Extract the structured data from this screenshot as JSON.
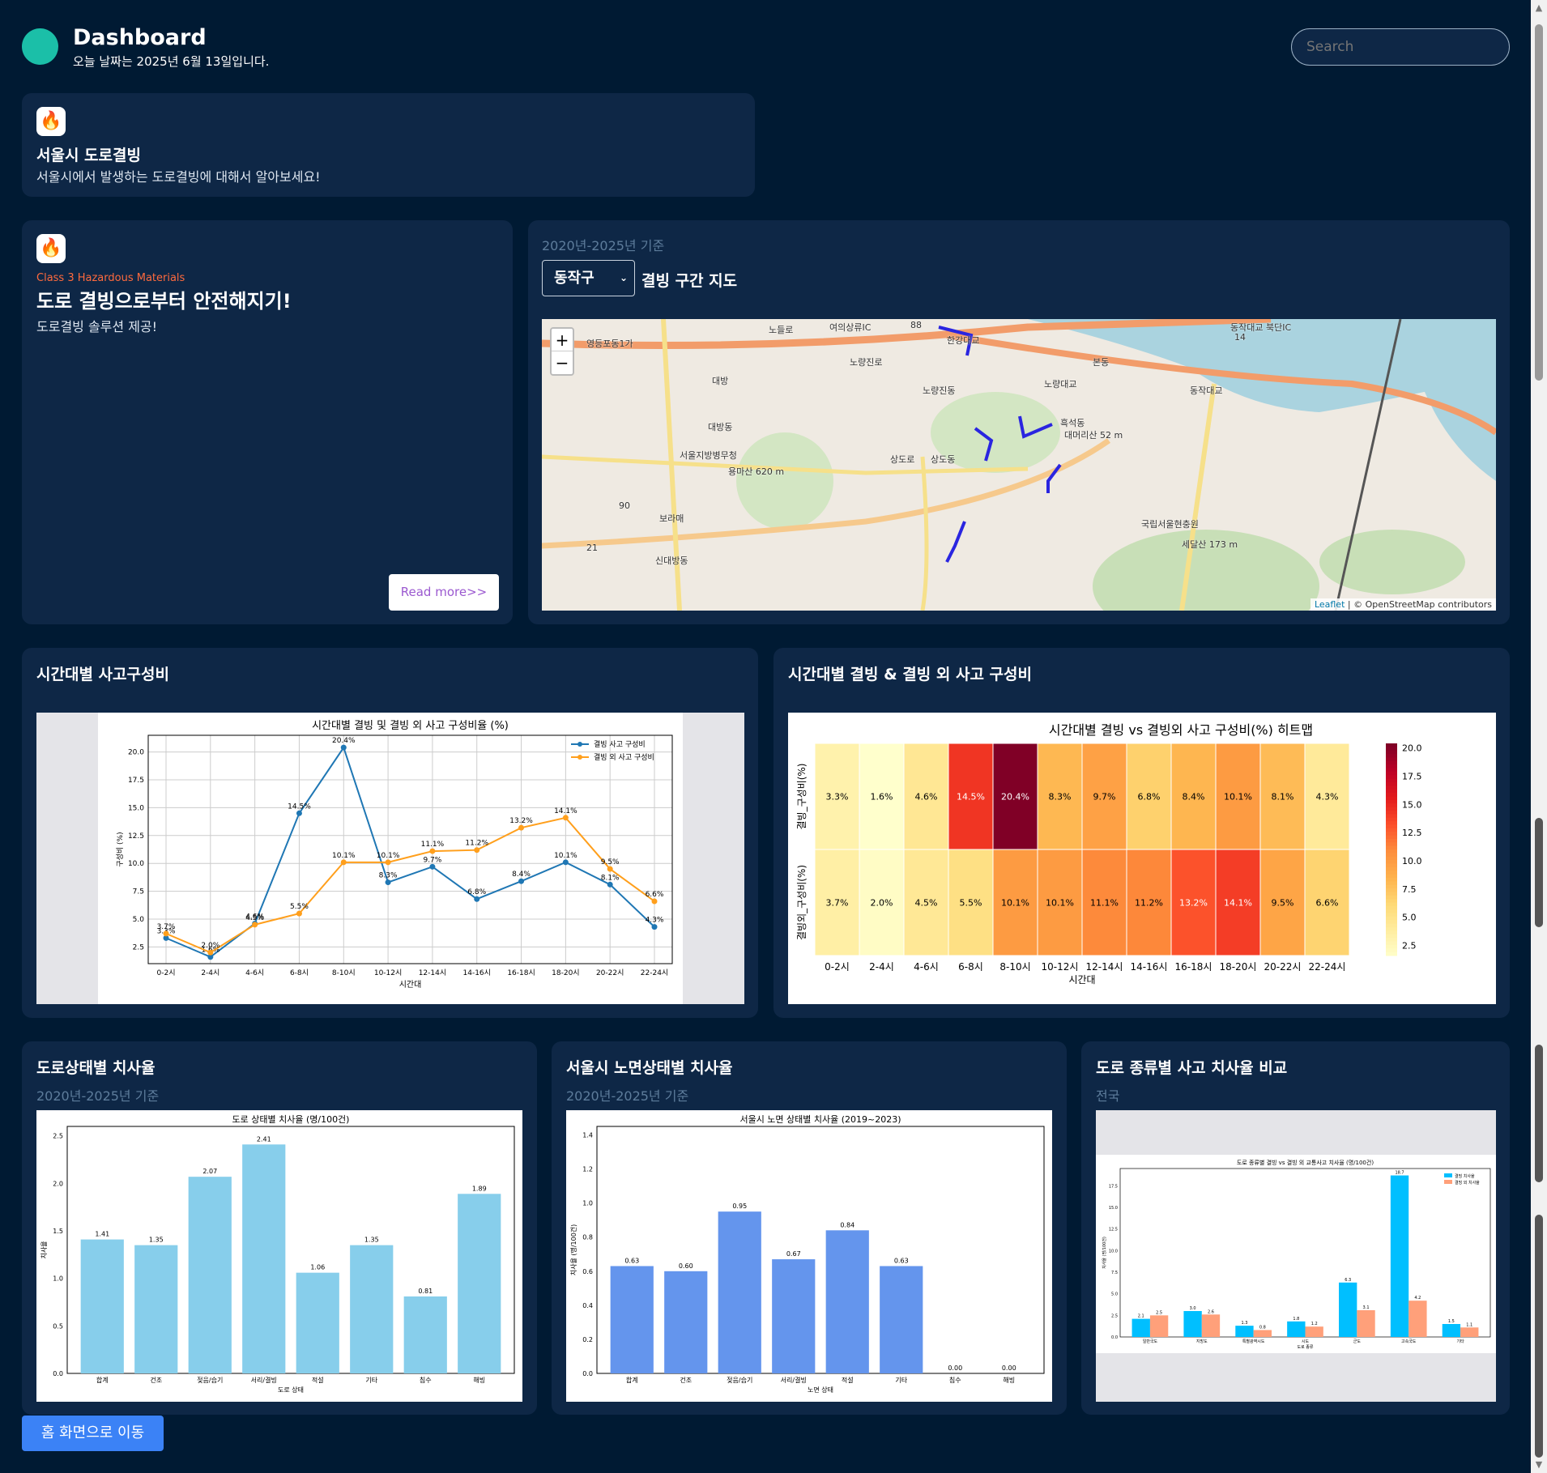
{
  "header": {
    "title": "Dashboard",
    "date_text": "오늘 날짜는 2025년 6월 13일입니다.",
    "search_placeholder": "Search"
  },
  "intro_card": {
    "title": "서울시 도로결빙",
    "desc": "서울시에서 발생하는 도로결빙에 대해서 알아보세요!"
  },
  "hero_card": {
    "kicker": "Class 3 Hazardous Materials",
    "title": "도로 결빙으로부터 안전해지기!",
    "desc": "도로결빙 솔루션 제공!",
    "read_more": "Read more>>"
  },
  "map_card": {
    "period": "2020년-2025년 기준",
    "district": "동작구",
    "title": "결빙 구간 지도",
    "attribution_leaflet": "Leaflet",
    "attribution_rest": "| © OpenStreetMap contributors",
    "zoom_in": "+",
    "zoom_out": "−",
    "labels": [
      "한강대교",
      "노량대교",
      "동작대교",
      "흑석동",
      "상도동",
      "노량진동",
      "대방동",
      "본동",
      "국립서울현충원",
      "신대방동",
      "영등포동1가",
      "대방",
      "보라매",
      "서울지방병무청",
      "대머리산 52 m",
      "세달산 173 m",
      "용마산 620 m",
      "노들로",
      "노량진로",
      "상도로",
      "여의상류IC",
      "동작대교 북단IC",
      "88",
      "14",
      "90",
      "21"
    ]
  },
  "colors": {
    "accent": "#00b3a4",
    "bg": "#001a33",
    "card": "#0e2746",
    "blue": "#3b82f6"
  },
  "card_line": {
    "heading": "시간대별 사고구성비"
  },
  "card_heat": {
    "heading": "시간대별 결빙 & 결빙 외 사고 구성비"
  },
  "card_road": {
    "heading": "도로상태별 치사율",
    "sub": "2020년-2025년 기준"
  },
  "card_surface": {
    "heading": "서울시 노면상태별 치사율",
    "sub": "2020년-2025년 기준"
  },
  "card_type": {
    "heading": "도로 종류별 사고 치사율 비교",
    "sub": "전국"
  },
  "home_button": "홈 화면으로 이동",
  "chart_data": [
    {
      "type": "line",
      "title": "시간대별 결빙 및 결빙 외 사고 구성비율 (%)",
      "xlabel": "시간대",
      "ylabel": "구성비 (%)",
      "categories": [
        "0-2시",
        "2-4시",
        "4-6시",
        "6-8시",
        "8-10시",
        "10-12시",
        "12-14시",
        "14-16시",
        "16-18시",
        "18-20시",
        "20-22시",
        "22-24시"
      ],
      "ylim": [
        1,
        21.5
      ],
      "yticks": [
        2.5,
        5.0,
        7.5,
        10.0,
        12.5,
        15.0,
        17.5,
        20.0
      ],
      "grid": true,
      "legend": "top-right",
      "series": [
        {
          "name": "결빙 사고 구성비",
          "color": "#1f77b4",
          "values": [
            3.3,
            1.6,
            4.6,
            14.5,
            20.4,
            8.3,
            9.7,
            6.8,
            8.4,
            10.1,
            8.1,
            4.3
          ]
        },
        {
          "name": "결빙 외 사고 구성비",
          "color": "#ff9f1c",
          "values": [
            3.7,
            2.0,
            4.5,
            5.5,
            10.1,
            10.1,
            11.1,
            11.2,
            13.2,
            14.1,
            9.5,
            6.6
          ]
        }
      ]
    },
    {
      "type": "heatmap",
      "title": "시간대별 결빙 vs 결빙외 사고 구성비(%) 히트맵",
      "xlabel": "시간대",
      "columns": [
        "0-2시",
        "2-4시",
        "4-6시",
        "6-8시",
        "8-10시",
        "10-12시",
        "12-14시",
        "14-16시",
        "16-18시",
        "18-20시",
        "20-22시",
        "22-24시"
      ],
      "rows": [
        "결빙_구성비(%)",
        "결빙외_구성비(%)"
      ],
      "values": [
        [
          3.3,
          1.6,
          4.6,
          14.5,
          20.4,
          8.3,
          9.7,
          6.8,
          8.4,
          10.1,
          8.1,
          4.3
        ],
        [
          3.7,
          2.0,
          4.5,
          5.5,
          10.1,
          10.1,
          11.1,
          11.2,
          13.2,
          14.1,
          9.5,
          6.6
        ]
      ],
      "cell_labels": [
        [
          "3.3%",
          "1.6%",
          "4.6%",
          "14.5%",
          "20.4%",
          "8.3%",
          "9.7%",
          "6.8%",
          "8.4%",
          "10.1%",
          "8.1%",
          "4.3%"
        ],
        [
          "3.7%",
          "2.0%",
          "4.5%",
          "5.5%",
          "10.1%",
          "10.1%",
          "11.1%",
          "11.2%",
          "13.2%",
          "14.1%",
          "9.5%",
          "6.6%"
        ]
      ],
      "colorbar_ticks": [
        "20.0",
        "17.5",
        "15.0",
        "12.5",
        "10.0",
        "7.5",
        "5.0",
        "2.5"
      ],
      "vmin": 1.6,
      "vmax": 20.4
    },
    {
      "type": "bar",
      "title": "도로 상태별 치사율 (명/100건)",
      "xlabel": "도로 상태",
      "ylabel": "치사율",
      "categories": [
        "합계",
        "건조",
        "젖음/습기",
        "서리/결빙",
        "적설",
        "기타",
        "침수",
        "해빙"
      ],
      "values": [
        1.41,
        1.35,
        2.07,
        2.41,
        1.06,
        1.35,
        0.81,
        1.89
      ],
      "labels": [
        "1.41",
        "1.35",
        "2.07",
        "2.41",
        "1.06",
        "1.35",
        "0.81",
        "1.89"
      ],
      "ylim": [
        0,
        2.6
      ],
      "yticks": [
        "0.0",
        "0.5",
        "1.0",
        "1.5",
        "2.0",
        "2.5"
      ],
      "color": "#87ceeb"
    },
    {
      "type": "bar",
      "title": "서울시 노면 상태별 치사율 (2019~2023)",
      "xlabel": "노면 상태",
      "ylabel": "치사율 (명/100건)",
      "categories": [
        "합계",
        "건조",
        "젖음/습기",
        "서리/결빙",
        "적설",
        "기타",
        "침수",
        "해빙"
      ],
      "values": [
        0.63,
        0.6,
        0.95,
        0.67,
        0.84,
        0.63,
        0.0,
        0.0
      ],
      "labels": [
        "0.63",
        "0.60",
        "0.95",
        "0.67",
        "0.84",
        "0.63",
        "0.00",
        "0.00"
      ],
      "ylim": [
        0,
        1.45
      ],
      "yticks": [
        "0.0",
        "0.2",
        "0.4",
        "0.6",
        "0.8",
        "1.0",
        "1.2",
        "1.4"
      ],
      "color": "#6495ed"
    },
    {
      "type": "bar",
      "title": "도로 종류별 결빙 vs 결빙 외 교통사고 치사율 (명/100건)",
      "xlabel": "도로 종류",
      "ylabel": "치사율 (명/100건)",
      "categories": [
        "일반국도",
        "지방도",
        "특별광역시도",
        "시도",
        "군도",
        "고속국도",
        "기타"
      ],
      "ylim": [
        0,
        19.5
      ],
      "yticks": [
        "0.0",
        "2.5",
        "5.0",
        "7.5",
        "10.0",
        "12.5",
        "15.0",
        "17.5"
      ],
      "legend": "top-right",
      "series": [
        {
          "name": "결빙 치사율",
          "color": "#00bfff",
          "values": [
            2.1,
            3.0,
            1.3,
            1.8,
            6.3,
            18.7,
            1.5
          ],
          "labels": [
            "2.1",
            "3.0",
            "1.3",
            "1.8",
            "6.3",
            "18.7",
            "1.5"
          ]
        },
        {
          "name": "결빙 외 치사율",
          "color": "#ffa07a",
          "values": [
            2.5,
            2.6,
            0.8,
            1.2,
            3.1,
            4.2,
            1.1
          ],
          "labels": [
            "2.5",
            "2.6",
            "0.8",
            "1.2",
            "3.1",
            "4.2",
            "1.1"
          ]
        }
      ]
    }
  ]
}
